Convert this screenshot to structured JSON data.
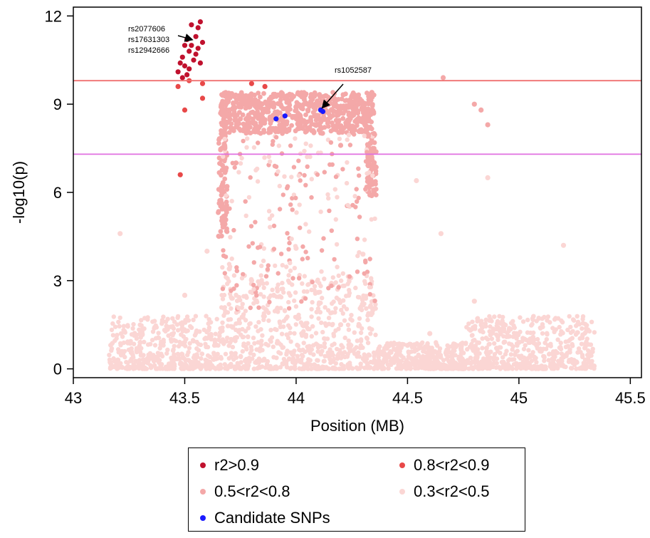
{
  "chart_data": {
    "type": "scatter",
    "title": "",
    "xlabel": "Position (MB)",
    "ylabel": "-log10(p)",
    "xlim": [
      43.0,
      45.55
    ],
    "ylim": [
      -0.3,
      12.3
    ],
    "xticks": [
      43,
      43.5,
      44,
      44.5,
      45,
      45.5
    ],
    "xtick_labels": [
      "43",
      "43.5",
      "44",
      "44.5",
      "45",
      "45.5"
    ],
    "yticks": [
      0,
      3,
      6,
      9,
      12
    ],
    "ytick_labels": [
      "0",
      "3",
      "6",
      "9",
      "12"
    ],
    "grid": false,
    "threshold_lines": [
      {
        "y": 9.8,
        "color": "#f07070"
      },
      {
        "y": 7.3,
        "color": "#e070e0"
      }
    ],
    "colors": {
      "r2>0.9": "#c0112e",
      "0.8<r2<0.9": "#e84848",
      "0.5<r2<0.8": "#f4a8a8",
      "0.3<r2<0.5": "#fbd6d4",
      "candidate": "#1a1aff"
    },
    "series": [
      {
        "name": "r2>0.9",
        "points": [
          [
            43.47,
            10.1
          ],
          [
            43.48,
            10.4
          ],
          [
            43.49,
            10.6
          ],
          [
            43.5,
            11.0
          ],
          [
            43.5,
            10.3
          ],
          [
            43.51,
            11.2
          ],
          [
            43.52,
            10.8
          ],
          [
            43.52,
            10.2
          ],
          [
            43.53,
            11.0
          ],
          [
            43.54,
            10.5
          ],
          [
            43.55,
            11.3
          ],
          [
            43.55,
            10.7
          ],
          [
            43.56,
            11.6
          ],
          [
            43.56,
            10.9
          ],
          [
            43.57,
            11.8
          ],
          [
            43.57,
            10.4
          ],
          [
            43.58,
            11.1
          ],
          [
            43.49,
            9.9
          ],
          [
            43.51,
            10.0
          ],
          [
            43.53,
            11.7
          ]
        ]
      },
      {
        "name": "0.8<r2<0.9",
        "points": [
          [
            43.47,
            9.6
          ],
          [
            43.5,
            8.8
          ],
          [
            43.58,
            9.2
          ],
          [
            43.58,
            9.7
          ],
          [
            43.52,
            9.8
          ],
          [
            43.8,
            9.7
          ],
          [
            43.86,
            9.6
          ],
          [
            43.48,
            6.6
          ]
        ]
      },
      {
        "name": "0.5<r2<0.8",
        "points": [
          [
            43.67,
            9.3
          ],
          [
            43.7,
            8.8
          ],
          [
            43.75,
            8.5
          ],
          [
            43.8,
            9.0
          ],
          [
            43.85,
            8.7
          ],
          [
            43.9,
            8.9
          ],
          [
            43.95,
            8.4
          ],
          [
            44.0,
            8.8
          ],
          [
            44.05,
            9.0
          ],
          [
            44.1,
            8.6
          ],
          [
            44.15,
            9.1
          ],
          [
            44.2,
            8.7
          ],
          [
            44.25,
            8.9
          ],
          [
            44.3,
            8.5
          ],
          [
            44.34,
            9.4
          ],
          [
            44.35,
            8.0
          ],
          [
            43.68,
            7.5
          ],
          [
            43.69,
            6.2
          ],
          [
            43.67,
            5.0
          ],
          [
            44.34,
            6.8
          ],
          [
            44.35,
            6.0
          ],
          [
            44.34,
            7.2
          ],
          [
            44.8,
            9.0
          ],
          [
            44.83,
            8.8
          ],
          [
            44.86,
            8.3
          ],
          [
            44.66,
            9.9
          ],
          [
            43.73,
            7.0
          ],
          [
            44.2,
            7.6
          ]
        ]
      },
      {
        "name": "0.3<r2<0.5",
        "points": [
          [
            43.2,
            0.3
          ],
          [
            43.3,
            0.9
          ],
          [
            43.4,
            1.6
          ],
          [
            43.5,
            2.5
          ],
          [
            43.6,
            4.0
          ],
          [
            43.7,
            3.4
          ],
          [
            43.8,
            3.0
          ],
          [
            43.9,
            2.5
          ],
          [
            44.0,
            4.1
          ],
          [
            44.1,
            2.6
          ],
          [
            44.2,
            1.5
          ],
          [
            44.3,
            3.9
          ],
          [
            44.4,
            0.4
          ],
          [
            44.5,
            0.8
          ],
          [
            44.6,
            1.2
          ],
          [
            44.7,
            0.5
          ],
          [
            44.8,
            2.3
          ],
          [
            44.9,
            0.7
          ],
          [
            45.0,
            0.9
          ],
          [
            45.1,
            0.6
          ],
          [
            45.2,
            0.4
          ],
          [
            45.3,
            0.8
          ],
          [
            45.2,
            4.2
          ],
          [
            43.21,
            4.6
          ],
          [
            44.86,
            6.5
          ],
          [
            44.65,
            4.6
          ],
          [
            44.54,
            6.4
          ]
        ]
      },
      {
        "name": "Candidate SNPs",
        "points": [
          [
            43.91,
            8.5
          ],
          [
            43.95,
            8.6
          ],
          [
            44.11,
            8.8
          ],
          [
            44.12,
            8.75
          ]
        ]
      }
    ],
    "background_bands": [
      {
        "x_start": 43.16,
        "x_end": 43.65,
        "y_max": 1.8
      },
      {
        "x_start": 43.65,
        "x_end": 44.36,
        "y_max": 3.2
      },
      {
        "x_start": 44.36,
        "x_end": 44.76,
        "y_max": 0.9
      },
      {
        "x_start": 44.76,
        "x_end": 45.34,
        "y_max": 1.8
      }
    ],
    "dense_block": {
      "x_start": 43.66,
      "x_end": 44.35,
      "y_low": 8.0,
      "y_high": 9.4
    },
    "annotations": [
      {
        "text": "rs2077606",
        "x": 43.53,
        "y": 11.2
      },
      {
        "text": "rs17631303",
        "x": 43.53,
        "y": 11.2
      },
      {
        "text": "rs12942666",
        "x": 43.53,
        "y": 11.2
      },
      {
        "text": "rs1052587",
        "x": 44.12,
        "y": 8.9
      }
    ],
    "legend": {
      "position": "bottom",
      "entries": [
        {
          "label": "r2>0.9",
          "color": "#c0112e"
        },
        {
          "label": "0.8<r2<0.9",
          "color": "#e84848"
        },
        {
          "label": "0.5<r2<0.8",
          "color": "#f4a8a8"
        },
        {
          "label": "0.3<r2<0.5",
          "color": "#fbd6d4"
        },
        {
          "label": "Candidate SNPs",
          "color": "#1a1aff"
        }
      ]
    }
  }
}
